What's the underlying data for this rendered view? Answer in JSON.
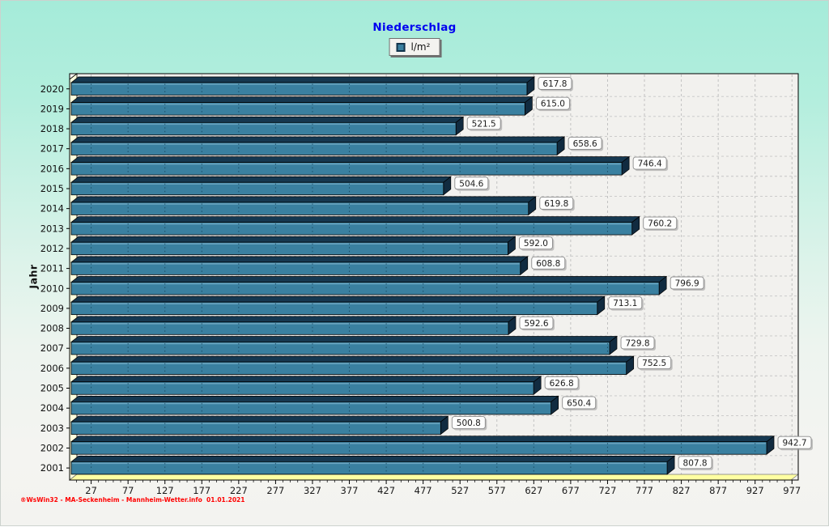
{
  "page": {
    "footer": "®WsWin32 - MA-Seckenheim - Mannheim-Wetter.info  01.01.2021"
  },
  "chart_data": {
    "type": "bar",
    "orientation": "horizontal",
    "title": "Niederschlag",
    "legend": [
      {
        "label": "l/m²",
        "color": "#3a80a0"
      }
    ],
    "legend_position": "top",
    "xlabel": "",
    "ylabel": "Jahr",
    "categories": [
      "2020",
      "2019",
      "2018",
      "2017",
      "2016",
      "2015",
      "2014",
      "2013",
      "2012",
      "2011",
      "2010",
      "2009",
      "2008",
      "2007",
      "2006",
      "2005",
      "2004",
      "2003",
      "2002",
      "2001"
    ],
    "values": [
      617.8,
      615.0,
      521.5,
      658.6,
      746.4,
      504.6,
      619.8,
      760.2,
      592.0,
      608.8,
      796.9,
      713.1,
      592.6,
      729.8,
      752.5,
      626.8,
      650.4,
      500.8,
      942.7,
      807.8
    ],
    "xlim": [
      0,
      980
    ],
    "xticks": [
      27,
      77,
      127,
      177,
      227,
      277,
      327,
      377,
      427,
      477,
      527,
      577,
      627,
      677,
      727,
      777,
      827,
      877,
      927,
      977
    ],
    "minor_tick_step": 10,
    "grid": true,
    "style_3d": true,
    "colors": {
      "bar_front": "#3a80a0",
      "bar_highlight": "#6fa9c4",
      "bar_top": "#163850",
      "bar_side": "#112b40",
      "wall": "#ffffdc",
      "floor": "#ffffa2",
      "plot_bg": "#f2f1ee",
      "grid": "#bdbdbd",
      "title": "#0000f0",
      "footer": "#ff0000"
    }
  }
}
